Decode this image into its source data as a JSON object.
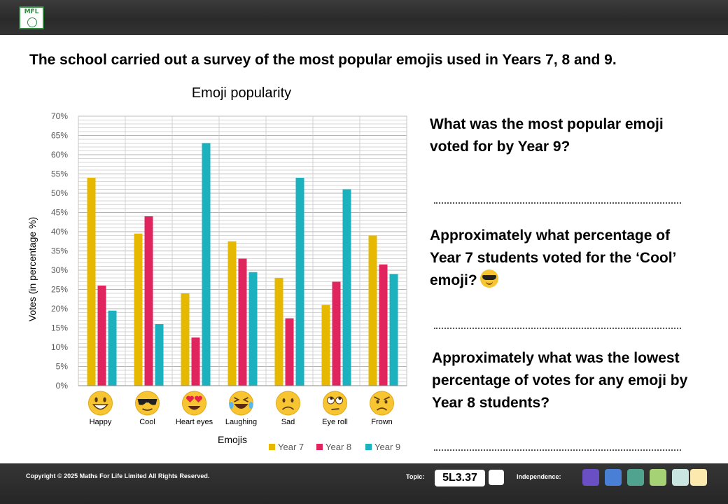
{
  "header": {
    "logo_text": "MFL"
  },
  "headline": "The school carried out a survey of the most popular emojis used in Years 7, 8 and 9.",
  "colors": {
    "year7": "#e6b800",
    "year8": "#e0245e",
    "year9": "#1cb1bf",
    "emoji_face": "#f7c531"
  },
  "chart_data": {
    "type": "bar",
    "title": "Emoji popularity",
    "xlabel": "Emojis",
    "ylabel": "Votes (in percentage %)",
    "ylim": [
      0,
      70
    ],
    "ytick_step": 5,
    "ytick_labels": [
      "0%",
      "5%",
      "10%",
      "15%",
      "20%",
      "25%",
      "30%",
      "35%",
      "40%",
      "45%",
      "50%",
      "55%",
      "60%",
      "65%",
      "70%"
    ],
    "categories": [
      "Happy",
      "Cool",
      "Heart eyes",
      "Laughing",
      "Sad",
      "Eye roll",
      "Frown"
    ],
    "emoji_icons": [
      "grinning-face",
      "sunglasses-face",
      "heart-eyes-face",
      "laughing-face",
      "sad-face",
      "eye-roll-face",
      "frown-face"
    ],
    "series": [
      {
        "name": "Year 7",
        "values": [
          54,
          39.5,
          24,
          37.5,
          28,
          21,
          39
        ]
      },
      {
        "name": "Year 8",
        "values": [
          26,
          44,
          12.5,
          33,
          17.5,
          27,
          31.5
        ]
      },
      {
        "name": "Year 9",
        "values": [
          19.5,
          16,
          63,
          29.5,
          54,
          51,
          29
        ]
      }
    ],
    "legend_position": "bottom"
  },
  "questions": [
    {
      "text": "What was the most popular emoji voted for by Year 9?"
    },
    {
      "text": "Approximately what percentage of Year 7 students voted for the ‘Cool’ emoji?",
      "icon": "sunglasses-emoji-icon"
    },
    {
      "text": "Approximately what was the lowest percentage of votes for any emoji by Year 8 students?"
    }
  ],
  "footer": {
    "copyright": "Copyright © 2025 Maths For Life Limited All Rights Reserved.",
    "topic_label": "Topic:",
    "topic_code": "5L3.37",
    "independence_label": "Independence:",
    "independence_colors": [
      "#6a4fc4",
      "#4a7fd6",
      "#4fa38f",
      "#a6d276",
      "#c9e6e0",
      "#fbe9ad"
    ]
  }
}
